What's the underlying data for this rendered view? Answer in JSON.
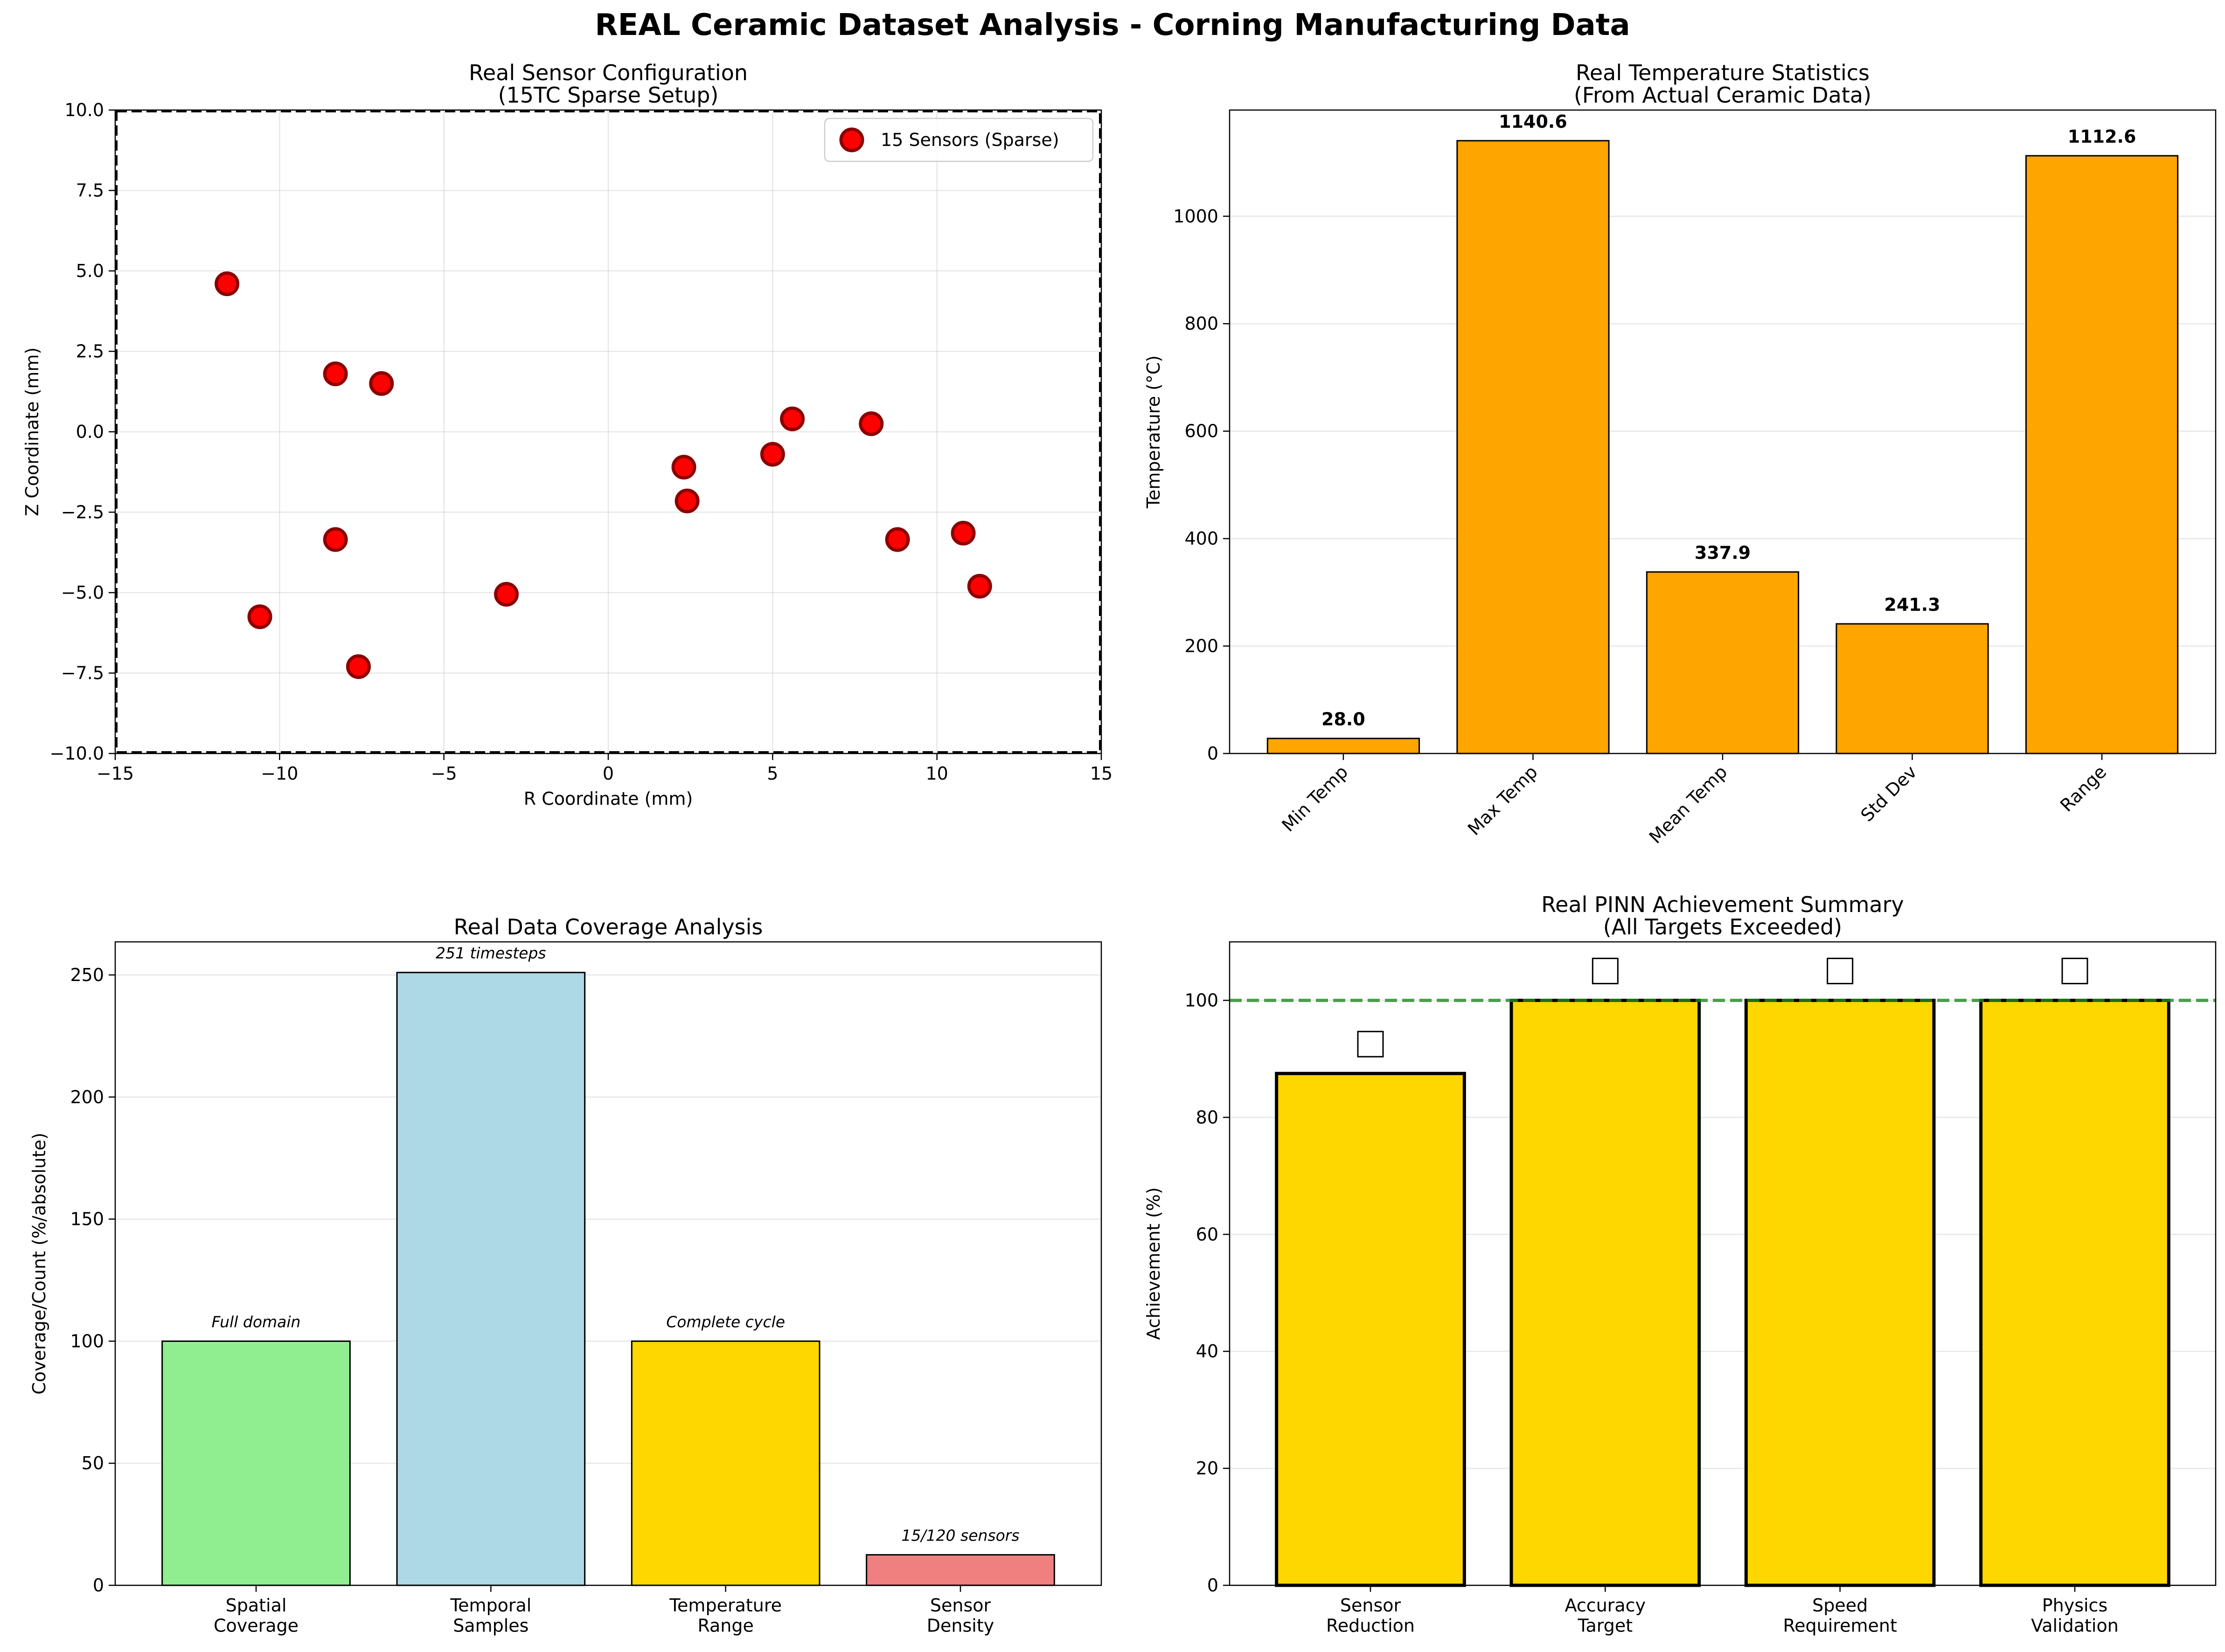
{
  "figure": {
    "suptitle": "REAL Ceramic Dataset Analysis - Corning Manufacturing Data"
  },
  "chart_data": [
    {
      "type": "scatter",
      "title": "Real Sensor Configuration",
      "subtitle": "(15TC Sparse Setup)",
      "xlabel": "R Coordinate (mm)",
      "ylabel": "Z Coordinate (mm)",
      "xlim": [
        -15,
        15
      ],
      "ylim": [
        -10,
        10
      ],
      "xticks": [
        "−15",
        "−10",
        "−5",
        "0",
        "5",
        "10",
        "15"
      ],
      "yticks": [
        "−10.0",
        "−7.5",
        "−5.0",
        "−2.5",
        "0.0",
        "2.5",
        "5.0",
        "7.5",
        "10.0"
      ],
      "grid": true,
      "legend": {
        "position": "top-right",
        "label": "15 Sensors (Sparse)"
      },
      "series": [
        {
          "name": "15 Sensors (Sparse)",
          "color": "#ff0000",
          "edgecolor": "#8b0000",
          "points": [
            [
              -11.6,
              4.6
            ],
            [
              -8.3,
              1.8
            ],
            [
              -6.9,
              1.5
            ],
            [
              -8.3,
              -3.35
            ],
            [
              -10.6,
              -5.75
            ],
            [
              -7.6,
              -7.3
            ],
            [
              -3.1,
              -5.05
            ],
            [
              2.3,
              -1.1
            ],
            [
              2.4,
              -2.15
            ],
            [
              5.0,
              -0.7
            ],
            [
              5.6,
              0.4
            ],
            [
              8.0,
              0.25
            ],
            [
              8.8,
              -3.35
            ],
            [
              10.8,
              -3.15
            ],
            [
              11.3,
              -4.8
            ]
          ]
        }
      ]
    },
    {
      "type": "bar",
      "title": "Real Temperature Statistics",
      "subtitle": "(From Actual Ceramic Data)",
      "xlabel": "",
      "ylabel": "Temperature (°C)",
      "ylim": [
        0,
        1197.7
      ],
      "yticks": [
        "0",
        "200",
        "400",
        "600",
        "800",
        "1000"
      ],
      "categories": [
        "Min Temp",
        "Max Temp",
        "Mean Temp",
        "Std Dev",
        "Range"
      ],
      "values": [
        28.0,
        1140.6,
        337.9,
        241.3,
        1112.6
      ],
      "data_labels": [
        "28.0",
        "1140.6",
        "337.9",
        "241.3",
        "1112.6"
      ],
      "color": "#ffa500",
      "grid": true
    },
    {
      "type": "bar",
      "title": "Real Data Coverage Analysis",
      "xlabel": "",
      "ylabel": "Coverage/Count (%/absolute)",
      "ylim": [
        0,
        263.55
      ],
      "yticks": [
        "0",
        "50",
        "100",
        "150",
        "200",
        "250"
      ],
      "categories": [
        "Spatial\nCoverage",
        "Temporal\nSamples",
        "Temperature\nRange",
        "Sensor\nDensity"
      ],
      "values": [
        100,
        251,
        100,
        12.5
      ],
      "colors": [
        "#90ee90",
        "#add8e6",
        "#ffd700",
        "#f08080"
      ],
      "annotations": [
        "Full domain",
        "251 timesteps",
        "Complete cycle",
        "15/120 sensors"
      ],
      "grid": true
    },
    {
      "type": "bar",
      "title": "Real PINN Achievement Summary",
      "subtitle": "(All Targets Exceeded)",
      "xlabel": "",
      "ylabel": "Achievement (%)",
      "ylim": [
        0,
        110
      ],
      "yticks": [
        "0",
        "20",
        "40",
        "60",
        "80",
        "100"
      ],
      "categories": [
        "Sensor\nReduction",
        "Accuracy\nTarget",
        "Speed\nRequirement",
        "Physics\nValidation"
      ],
      "values": [
        87.5,
        100,
        100,
        100
      ],
      "color": "#ffd700",
      "reference_line": {
        "y": 100,
        "color": "#228b22",
        "style": "dashed"
      },
      "markers": [
        "✅",
        "✅",
        "✅",
        "✅"
      ],
      "grid": true
    }
  ]
}
